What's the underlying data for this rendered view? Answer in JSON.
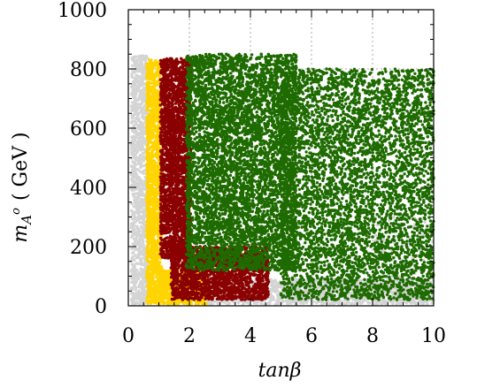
{
  "chart_data": {
    "type": "scatter",
    "xlabel": "tanβ",
    "ylabel_main": "m",
    "ylabel_sub": "A",
    "ylabel_sup": "o",
    "ylabel_unit": "( GeV )",
    "xlim": [
      0,
      10
    ],
    "ylim": [
      0,
      1000
    ],
    "xticks": [
      0,
      2,
      4,
      6,
      8,
      10
    ],
    "yticks": [
      0,
      200,
      400,
      600,
      800,
      1000
    ],
    "xtick_labels": [
      "0",
      "2",
      "4",
      "6",
      "8",
      "10"
    ],
    "ytick_labels": [
      "0",
      "200",
      "400",
      "600",
      "800",
      "1000"
    ],
    "minor_ticks": true,
    "grid": "dotted gray lines at x = 2, 4, 6, 8 and at y = 800 in upper region",
    "grid_x": [
      2,
      4,
      6,
      8
    ],
    "grid_y": [
      800
    ],
    "series": [
      {
        "color": "#d4d4d4",
        "regions": [
          {
            "x": [
              0.1,
              0.65
            ],
            "y": [
              5,
              845
            ],
            "count": 1200
          },
          {
            "x": [
              2.5,
              10.0
            ],
            "y": [
              5,
              90
            ],
            "count": 1400
          },
          {
            "x": [
              8.0,
              10.0
            ],
            "y": [
              5,
              300
            ],
            "count": 220
          }
        ]
      },
      {
        "color": "#ffd400",
        "regions": [
          {
            "x": [
              0.6,
              1.1
            ],
            "y": [
              5,
              830
            ],
            "count": 1500
          },
          {
            "x": [
              1.0,
              2.6
            ],
            "y": [
              5,
              120
            ],
            "count": 700
          }
        ]
      },
      {
        "color": "#8b0000",
        "regions": [
          {
            "x": [
              1.05,
              2.05
            ],
            "y": [
              160,
              835
            ],
            "count": 2600
          },
          {
            "x": [
              1.4,
              4.6
            ],
            "y": [
              20,
              200
            ],
            "count": 1800
          }
        ]
      },
      {
        "color": "#1e6b00",
        "regions": [
          {
            "x": [
              1.9,
              5.5
            ],
            "y": [
              120,
              850
            ],
            "count": 9000
          },
          {
            "x": [
              5.0,
              10.0
            ],
            "y": [
              20,
              800
            ],
            "count": 5500
          }
        ]
      }
    ]
  }
}
